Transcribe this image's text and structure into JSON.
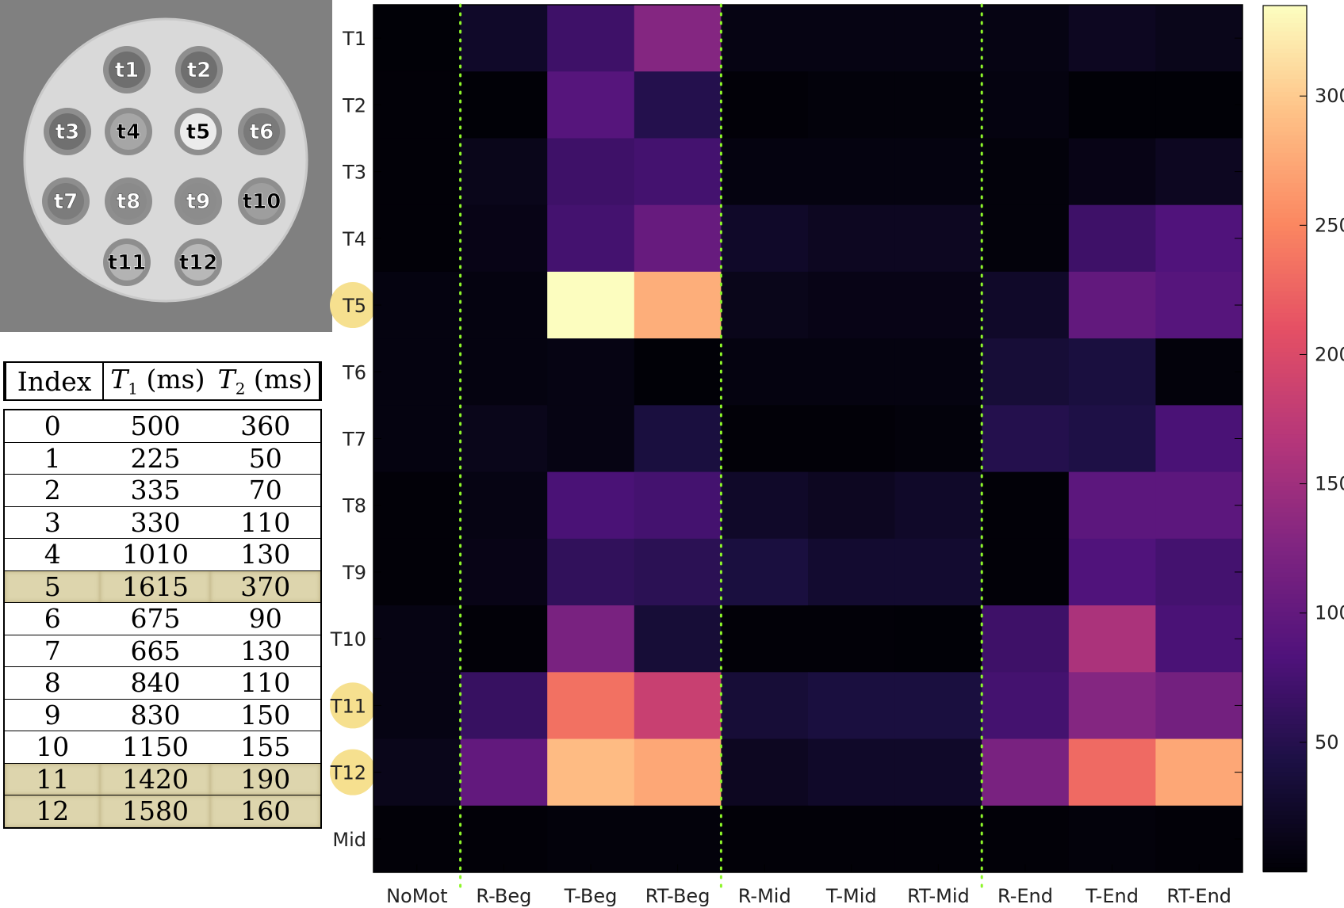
{
  "phantom": {
    "tubes": [
      {
        "label": "t1",
        "fill": "#6f6f6f",
        "text": "#ffffff"
      },
      {
        "label": "t2",
        "fill": "#6f6f6f",
        "text": "#ffffff"
      },
      {
        "label": "t3",
        "fill": "#707070",
        "text": "#ffffff"
      },
      {
        "label": "t4",
        "fill": "#a6a6a6",
        "text": "#000000"
      },
      {
        "label": "t5",
        "fill": "#ebebeb",
        "text": "#000000"
      },
      {
        "label": "t6",
        "fill": "#7a7a7a",
        "text": "#ffffff"
      },
      {
        "label": "t7",
        "fill": "#7c7c7c",
        "text": "#ffffff"
      },
      {
        "label": "t8",
        "fill": "#8a8a8a",
        "text": "#ffffff"
      },
      {
        "label": "t9",
        "fill": "#8c8c8c",
        "text": "#ffffff"
      },
      {
        "label": "t10",
        "fill": "#9e9e9e",
        "text": "#000000"
      },
      {
        "label": "t11",
        "fill": "#b3b3b3",
        "text": "#000000"
      },
      {
        "label": "t12",
        "fill": "#b8b8b8",
        "text": "#000000"
      }
    ]
  },
  "table": {
    "headers": {
      "index": "Index",
      "t1_sym": "T",
      "t1_sub": "1",
      "t1_unit": " (ms)",
      "t2_sym": "T",
      "t2_sub": "2",
      "t2_unit": " (ms)"
    },
    "highlight_color": "#ddd5ad",
    "rows": [
      {
        "index": "0",
        "t1": "500",
        "t2": "360",
        "highlight": false
      },
      {
        "index": "1",
        "t1": "225",
        "t2": "50",
        "highlight": false
      },
      {
        "index": "2",
        "t1": "335",
        "t2": "70",
        "highlight": false
      },
      {
        "index": "3",
        "t1": "330",
        "t2": "110",
        "highlight": false
      },
      {
        "index": "4",
        "t1": "1010",
        "t2": "130",
        "highlight": false
      },
      {
        "index": "5",
        "t1": "1615",
        "t2": "370",
        "highlight": true
      },
      {
        "index": "6",
        "t1": "675",
        "t2": "90",
        "highlight": false
      },
      {
        "index": "7",
        "t1": "665",
        "t2": "130",
        "highlight": false
      },
      {
        "index": "8",
        "t1": "840",
        "t2": "110",
        "highlight": false
      },
      {
        "index": "9",
        "t1": "830",
        "t2": "150",
        "highlight": false
      },
      {
        "index": "10",
        "t1": "1150",
        "t2": "155",
        "highlight": false
      },
      {
        "index": "11",
        "t1": "1420",
        "t2": "190",
        "highlight": true
      },
      {
        "index": "12",
        "t1": "1580",
        "t2": "160",
        "highlight": true
      }
    ]
  },
  "chart_data": {
    "type": "heatmap",
    "rows": [
      "T1",
      "T2",
      "T3",
      "T4",
      "T5",
      "T6",
      "T7",
      "T8",
      "T9",
      "T10",
      "T11",
      "T12",
      "Mid"
    ],
    "columns": [
      "NoMot",
      "R-Beg",
      "T-Beg",
      "RT-Beg",
      "R-Mid",
      "T-Mid",
      "RT-Mid",
      "R-End",
      "T-End",
      "RT-End"
    ],
    "highlighted_rows": [
      "T5",
      "T11",
      "T12"
    ],
    "highlight_color": "#f6e08f",
    "group_separators_after_column": [
      0,
      3,
      6
    ],
    "separator_color": "#8ef52a",
    "colormap": "magma",
    "color_range": [
      0,
      335
    ],
    "colorbar_ticks": [
      50,
      100,
      150,
      200,
      250,
      300
    ],
    "values": [
      [
        2,
        25,
        70,
        130,
        10,
        10,
        10,
        10,
        20,
        15
      ],
      [
        3,
        2,
        90,
        50,
        3,
        5,
        5,
        8,
        2,
        2
      ],
      [
        3,
        15,
        70,
        75,
        8,
        8,
        8,
        5,
        12,
        20
      ],
      [
        3,
        12,
        75,
        105,
        25,
        20,
        20,
        5,
        70,
        85
      ],
      [
        8,
        8,
        335,
        280,
        15,
        12,
        12,
        25,
        100,
        90
      ],
      [
        8,
        8,
        10,
        2,
        8,
        8,
        8,
        35,
        40,
        5
      ],
      [
        8,
        15,
        10,
        40,
        3,
        3,
        5,
        50,
        45,
        80
      ],
      [
        3,
        10,
        80,
        75,
        25,
        20,
        25,
        3,
        95,
        95
      ],
      [
        3,
        12,
        60,
        55,
        40,
        30,
        30,
        3,
        85,
        75
      ],
      [
        10,
        3,
        120,
        35,
        3,
        3,
        2,
        70,
        160,
        80
      ],
      [
        10,
        65,
        235,
        185,
        35,
        40,
        40,
        75,
        130,
        115
      ],
      [
        15,
        100,
        290,
        275,
        20,
        25,
        25,
        120,
        230,
        275
      ],
      [
        3,
        3,
        5,
        5,
        3,
        3,
        3,
        3,
        5,
        3
      ]
    ]
  }
}
